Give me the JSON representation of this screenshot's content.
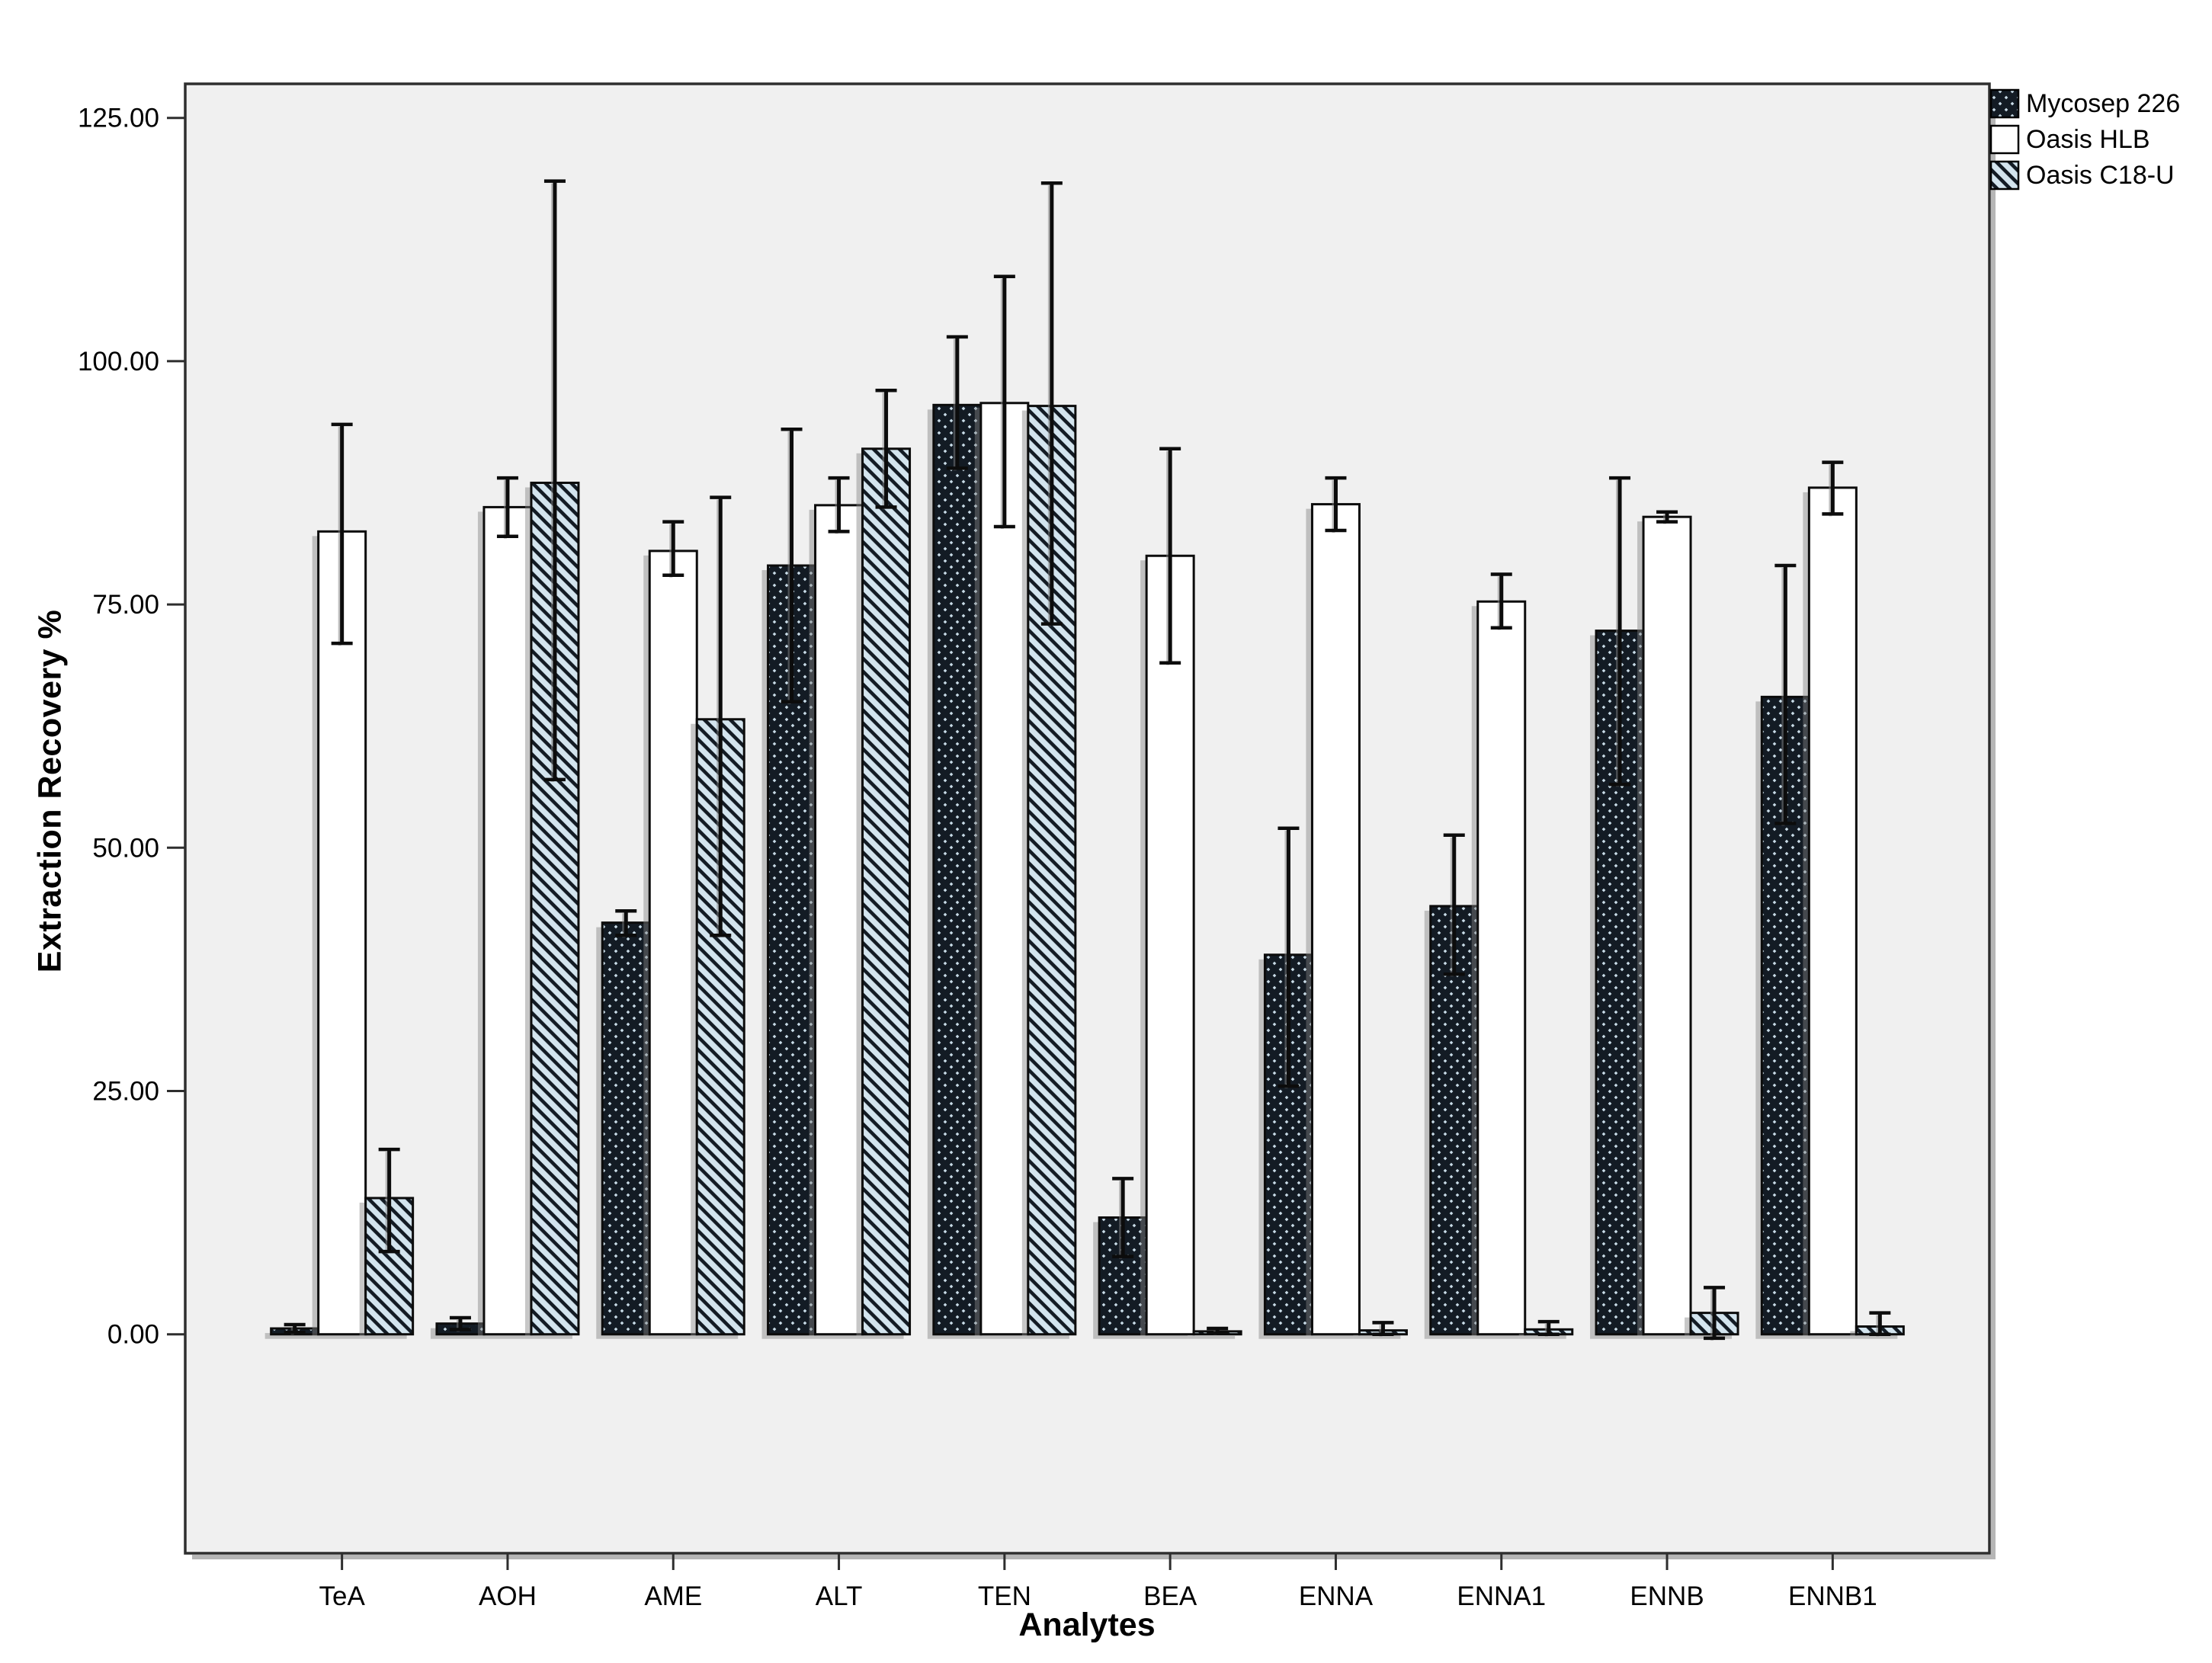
{
  "page": {
    "background": "#ffffff"
  },
  "colors": {
    "plot_background": "#f0f0f0",
    "frame_border": "#2e2e2e",
    "bar_border": "#0c0c0c",
    "pattern_dark": "#131b24",
    "pattern_light_blue": "#c9dce8",
    "stripe_light_blue": "#d3e4ee",
    "shadow_gray": "#828282",
    "text": "#000000"
  },
  "legend": {
    "position": "outside-top-right",
    "items": [
      {
        "label": "Mycosep 226",
        "swatch": "crosshatch"
      },
      {
        "label": "Oasis HLB",
        "swatch": "solid-white"
      },
      {
        "label": "Oasis C18-U",
        "swatch": "diagonal-stripes"
      }
    ]
  },
  "chart_data": {
    "type": "bar",
    "title": "",
    "xlabel": "Analytes",
    "ylabel": "Extraction Recovery %",
    "categories": [
      "TeA",
      "AOH",
      "AME",
      "ALT",
      "TEN",
      "BEA",
      "ENNA",
      "ENNA1",
      "ENNB",
      "ENNB1"
    ],
    "y_ticks": [
      0,
      25,
      50,
      75,
      100,
      125
    ],
    "y_tick_labels": [
      "0.00",
      "25.00",
      "50.00",
      "75.00",
      "100.00",
      "125.00"
    ],
    "ylim": [
      -22.5,
      128.5
    ],
    "grid": false,
    "error_bars": true,
    "legend_position": "outside-top-right",
    "series": [
      {
        "name": "Mycosep 226",
        "pattern": "crosshatch",
        "values": [
          0.6,
          1.1,
          42.3,
          79.0,
          95.5,
          12.0,
          39.0,
          44.0,
          72.3,
          65.5
        ],
        "error_low": [
          0.2,
          0.5,
          41.0,
          65.0,
          89.0,
          8.0,
          25.5,
          37.0,
          56.5,
          52.5
        ],
        "error_high": [
          1.0,
          1.7,
          43.5,
          93.0,
          102.5,
          16.0,
          52.0,
          51.3,
          88.0,
          79.0
        ]
      },
      {
        "name": "Oasis HLB",
        "pattern": "solid-white",
        "values": [
          82.5,
          85.0,
          80.5,
          85.2,
          95.7,
          80.0,
          85.3,
          75.3,
          84.0,
          87.0
        ],
        "error_low": [
          71.0,
          82.0,
          78.0,
          82.5,
          83.0,
          69.0,
          82.6,
          72.6,
          83.5,
          84.3
        ],
        "error_high": [
          93.5,
          88.0,
          83.5,
          88.0,
          108.7,
          91.0,
          88.0,
          78.1,
          84.5,
          89.6
        ]
      },
      {
        "name": "Oasis C18-U",
        "pattern": "diagonal-stripes",
        "values": [
          14.0,
          87.5,
          63.2,
          91.0,
          95.4,
          0.3,
          0.4,
          0.5,
          2.2,
          0.8
        ],
        "error_low": [
          8.5,
          57.0,
          41.0,
          85.0,
          73.0,
          0.1,
          0.0,
          0.0,
          -0.4,
          0.0
        ],
        "error_high": [
          19.0,
          118.5,
          86.0,
          97.0,
          118.3,
          0.6,
          1.2,
          1.3,
          4.8,
          2.2
        ]
      }
    ]
  }
}
